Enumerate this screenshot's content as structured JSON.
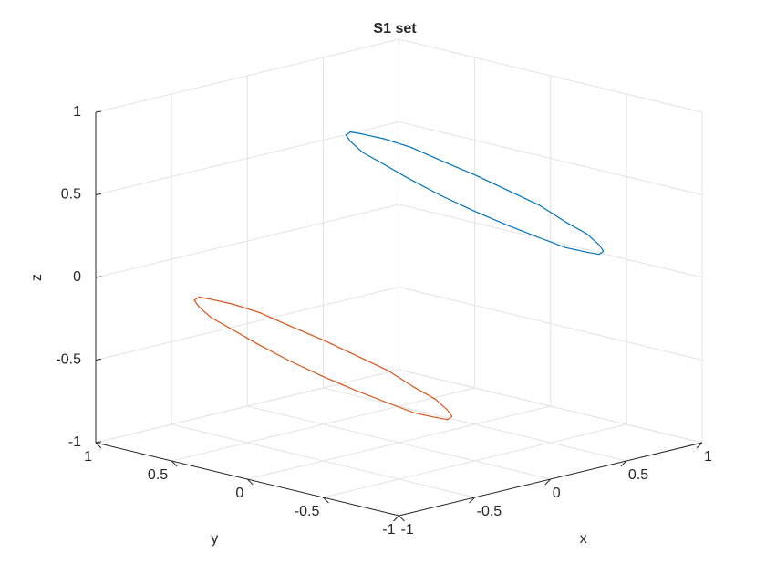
{
  "chart_data": {
    "type": "line3d",
    "title": "S1 set",
    "xlabel": "x",
    "ylabel": "y",
    "zlabel": "z",
    "xlim": [
      -1,
      1
    ],
    "ylim": [
      -1,
      1
    ],
    "zlim": [
      -1,
      1
    ],
    "xticks": [
      -1,
      -0.5,
      0,
      0.5,
      1
    ],
    "yticks": [
      -1,
      -0.5,
      0,
      0.5,
      1
    ],
    "zticks": [
      -1,
      -0.5,
      0,
      0.5,
      1
    ],
    "grid": true,
    "series": [
      {
        "color": "#0072bd",
        "x": [
          0.92,
          0.84,
          0.74,
          0.62,
          0.49,
          0.37,
          0.25,
          0.15,
          0.07,
          0.03,
          0.01,
          0.03,
          0.08,
          0.16,
          0.26,
          0.38,
          0.51,
          0.63,
          0.75,
          0.85,
          0.93,
          0.97,
          0.99,
          0.97,
          0.92
        ],
        "y": [
          -0.43,
          -0.48,
          -0.5,
          -0.48,
          -0.43,
          -0.35,
          -0.25,
          -0.13,
          0,
          0.13,
          0.25,
          0.35,
          0.43,
          0.48,
          0.5,
          0.48,
          0.43,
          0.35,
          0.25,
          0.13,
          0,
          -0.13,
          -0.25,
          -0.35,
          -0.43
        ],
        "z": [
          0.05,
          0.06,
          0.1,
          0.15,
          0.23,
          0.31,
          0.4,
          0.49,
          0.58,
          0.65,
          0.7,
          0.74,
          0.75,
          0.74,
          0.7,
          0.65,
          0.58,
          0.49,
          0.4,
          0.31,
          0.23,
          0.15,
          0.1,
          0.06,
          0.05
        ]
      },
      {
        "color": "#d95319",
        "x": [
          0.42,
          0.34,
          0.24,
          0.12,
          -0.01,
          -0.13,
          -0.25,
          -0.35,
          -0.43,
          -0.47,
          -0.49,
          -0.47,
          -0.42,
          -0.34,
          -0.24,
          -0.12,
          0.01,
          0.13,
          0.25,
          0.35,
          0.43,
          0.47,
          0.49,
          0.47,
          0.42
        ],
        "y": [
          0.07,
          0.02,
          0,
          0.02,
          0.07,
          0.15,
          0.25,
          0.37,
          0.5,
          0.63,
          0.75,
          0.85,
          0.93,
          0.98,
          1,
          0.98,
          0.93,
          0.85,
          0.75,
          0.63,
          0.5,
          0.37,
          0.25,
          0.15,
          0.07
        ],
        "z": [
          -0.95,
          -0.94,
          -0.9,
          -0.85,
          -0.77,
          -0.69,
          -0.6,
          -0.51,
          -0.42,
          -0.35,
          -0.3,
          -0.26,
          -0.25,
          -0.26,
          -0.3,
          -0.35,
          -0.42,
          -0.51,
          -0.6,
          -0.69,
          -0.77,
          -0.85,
          -0.9,
          -0.94,
          -0.95
        ]
      }
    ]
  }
}
